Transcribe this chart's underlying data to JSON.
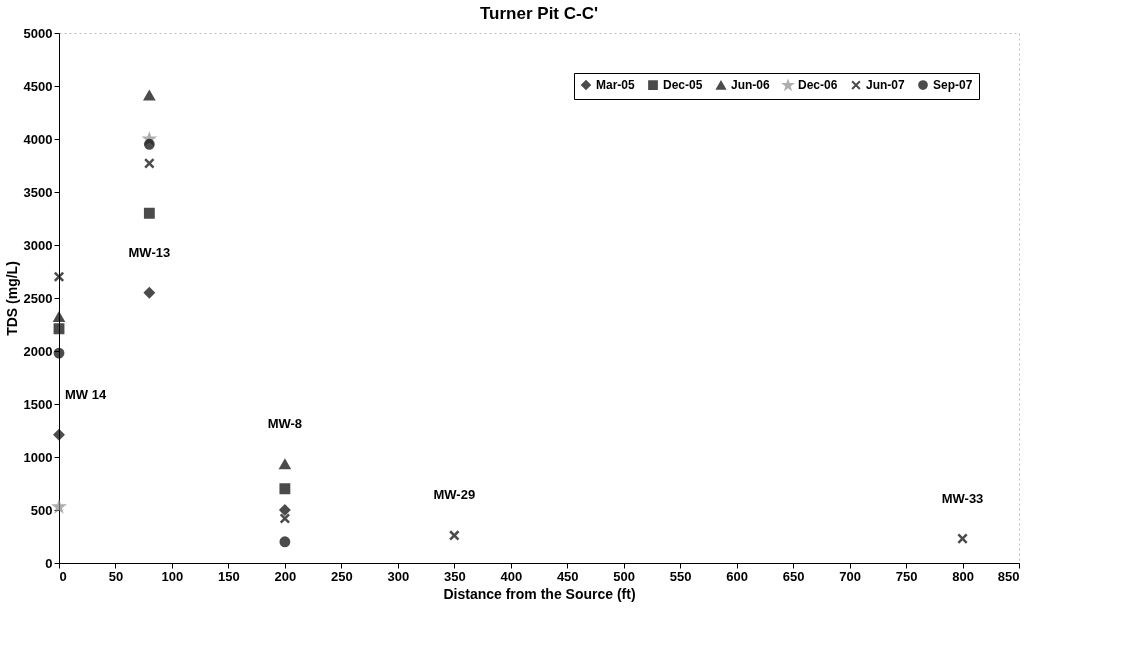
{
  "chart_data": {
    "type": "scatter",
    "title": "Turner Pit C-C'",
    "xlabel": "Distance from the Source (ft)",
    "ylabel": "TDS (mg/L)",
    "x": [
      0,
      80,
      200,
      350,
      800
    ],
    "series": [
      {
        "name": "Mar-05",
        "color": "#000000",
        "marker": "diamond",
        "values": [
          1210,
          2550,
          500,
          null,
          null
        ]
      },
      {
        "name": "Dec-05",
        "color": "#000000",
        "marker": "square",
        "values": [
          2210,
          3300,
          700,
          null,
          null
        ]
      },
      {
        "name": "Jun-06",
        "color": "#000000",
        "marker": "triangle",
        "values": [
          2320,
          4410,
          930,
          null,
          null
        ]
      },
      {
        "name": "Dec-06",
        "color": "#8c8c8c",
        "marker": "star",
        "values": [
          530,
          4000,
          null,
          null,
          null
        ]
      },
      {
        "name": "Jun-07",
        "color": "#000000",
        "marker": "cross",
        "values": [
          2700,
          3770,
          420,
          260,
          230
        ]
      },
      {
        "name": "Sep-07",
        "color": "#000000",
        "marker": "circle",
        "values": [
          1980,
          3950,
          200,
          null,
          null
        ]
      }
    ],
    "xlim": [
      0,
      850
    ],
    "xticks": [
      0,
      50,
      100,
      150,
      200,
      250,
      300,
      350,
      400,
      450,
      500,
      550,
      600,
      650,
      700,
      750,
      800,
      850
    ],
    "ylim": [
      0,
      5000
    ],
    "yticks": [
      0,
      500,
      1000,
      1500,
      2000,
      2500,
      3000,
      3500,
      4000,
      4500,
      5000
    ],
    "grid": false,
    "legend": "top right",
    "annotations": [
      {
        "text": "MW 14",
        "x": 0,
        "y": 1210
      },
      {
        "text": "MW-13",
        "x": 80,
        "y": 2550
      },
      {
        "text": "MW-8",
        "x": 200,
        "y": 930
      },
      {
        "text": "MW-29",
        "x": 350,
        "y": 260
      },
      {
        "text": "MW-33",
        "x": 800,
        "y": 230
      }
    ]
  }
}
